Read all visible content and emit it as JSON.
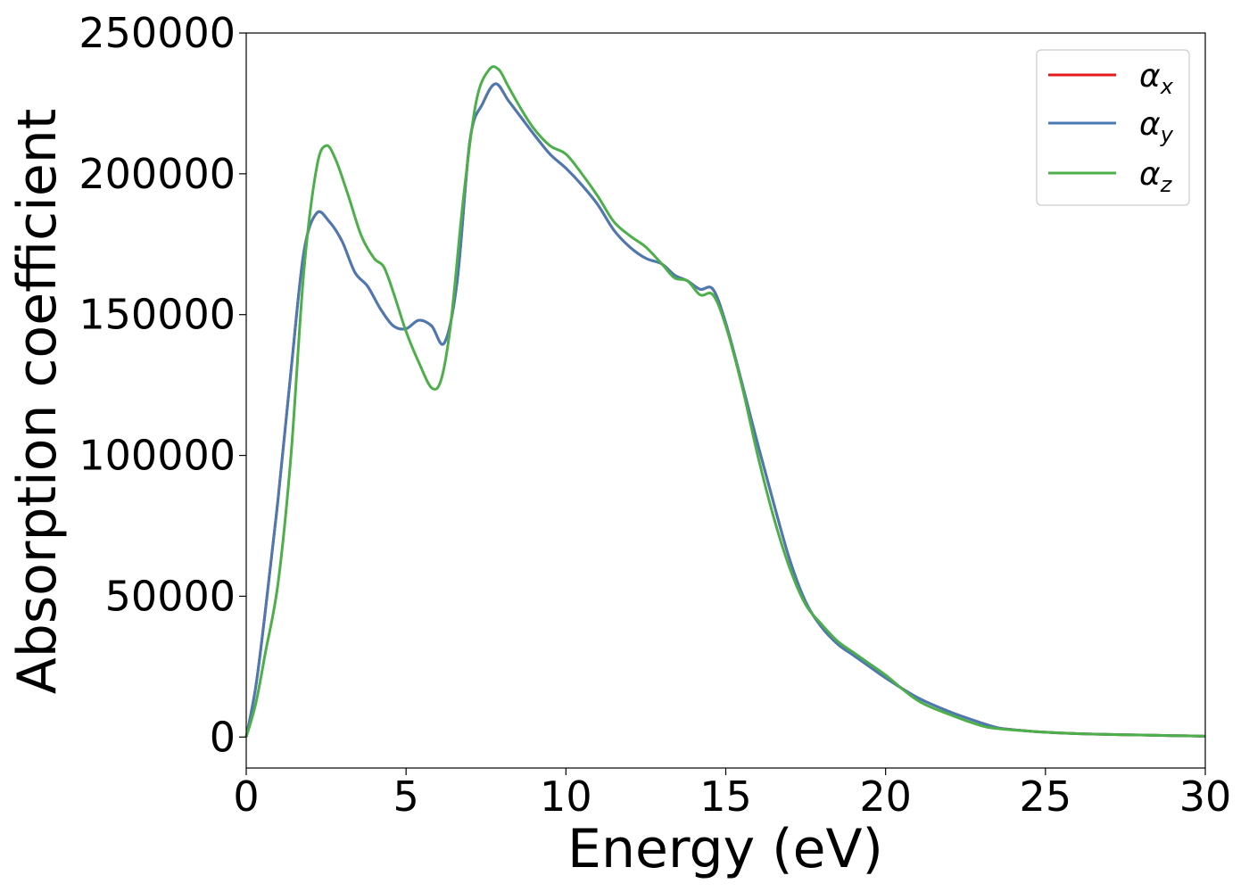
{
  "chart_data": {
    "type": "line",
    "xlabel": "Energy (eV)",
    "ylabel": "Absorption coefficient",
    "xlim": [
      0,
      30
    ],
    "ylim": [
      -11000,
      250000
    ],
    "xticks": [
      0,
      5,
      10,
      15,
      20,
      25,
      30
    ],
    "xtick_labels": [
      "0",
      "5",
      "10",
      "15",
      "20",
      "25",
      "30"
    ],
    "yticks": [
      0,
      50000,
      100000,
      150000,
      200000,
      250000
    ],
    "ytick_labels": [
      "0",
      "50000",
      "100000",
      "150000",
      "200000",
      "250000"
    ],
    "grid": false,
    "legend_position": "top-right",
    "series": [
      {
        "name": "α_x",
        "legend_base": "α",
        "legend_sub": "x",
        "color": "#e41a1c",
        "x": [
          0,
          0.3,
          0.6,
          1.0,
          1.4,
          1.8,
          2.2,
          2.6,
          3.0,
          3.4,
          3.8,
          4.2,
          4.6,
          5.0,
          5.4,
          5.8,
          6.2,
          6.6,
          7.0,
          7.4,
          7.8,
          8.2,
          8.6,
          9.0,
          9.5,
          10.0,
          10.5,
          11.0,
          11.5,
          12.0,
          12.5,
          13.0,
          13.4,
          13.8,
          14.2,
          14.6,
          15.0,
          15.5,
          16.0,
          16.5,
          17.0,
          17.5,
          18.0,
          18.5,
          19.0,
          19.5,
          20.0,
          21.0,
          22.0,
          23.0,
          23.5,
          24.0,
          25.0,
          26.0,
          27.0,
          28.0,
          29.0,
          30.0
        ],
        "y": [
          0,
          18000,
          45000,
          85000,
          130000,
          172000,
          186000,
          183000,
          176000,
          165000,
          160000,
          152000,
          146000,
          145000,
          148000,
          146000,
          140000,
          162000,
          212000,
          225000,
          232000,
          226000,
          220000,
          214000,
          207000,
          202000,
          196000,
          189000,
          180000,
          174000,
          170000,
          168000,
          164000,
          162000,
          159000,
          159000,
          147000,
          126000,
          104000,
          83000,
          63000,
          48000,
          39000,
          33000,
          29000,
          25000,
          21000,
          14000,
          9000,
          5000,
          3300,
          2600,
          1700,
          1200,
          900,
          700,
          500,
          300
        ]
      },
      {
        "name": "α_y",
        "legend_base": "α",
        "legend_sub": "y",
        "color": "#4a7ab4",
        "x": [
          0,
          0.3,
          0.6,
          1.0,
          1.4,
          1.8,
          2.2,
          2.6,
          3.0,
          3.4,
          3.8,
          4.2,
          4.6,
          5.0,
          5.4,
          5.8,
          6.2,
          6.6,
          7.0,
          7.4,
          7.8,
          8.2,
          8.6,
          9.0,
          9.5,
          10.0,
          10.5,
          11.0,
          11.5,
          12.0,
          12.5,
          13.0,
          13.4,
          13.8,
          14.2,
          14.6,
          15.0,
          15.5,
          16.0,
          16.5,
          17.0,
          17.5,
          18.0,
          18.5,
          19.0,
          19.5,
          20.0,
          21.0,
          22.0,
          23.0,
          23.5,
          24.0,
          25.0,
          26.0,
          27.0,
          28.0,
          29.0,
          30.0
        ],
        "y": [
          0,
          18000,
          45000,
          85000,
          130000,
          172000,
          186000,
          183000,
          176000,
          165000,
          160000,
          152000,
          146000,
          145000,
          148000,
          146000,
          140000,
          162000,
          212000,
          225000,
          232000,
          226000,
          220000,
          214000,
          207000,
          202000,
          196000,
          189000,
          180000,
          174000,
          170000,
          168000,
          164000,
          162000,
          159000,
          159000,
          147000,
          126000,
          104000,
          83000,
          63000,
          48000,
          39000,
          33000,
          29000,
          25000,
          21000,
          14000,
          9000,
          5000,
          3300,
          2600,
          1700,
          1200,
          900,
          700,
          500,
          300
        ]
      },
      {
        "name": "α_z",
        "legend_base": "α",
        "legend_sub": "z",
        "color": "#4daf4a",
        "x": [
          0,
          0.3,
          0.6,
          1.0,
          1.4,
          1.8,
          2.2,
          2.5,
          2.8,
          3.2,
          3.6,
          4.0,
          4.3,
          4.6,
          5.0,
          5.4,
          5.8,
          6.1,
          6.4,
          6.8,
          7.2,
          7.6,
          7.9,
          8.2,
          8.6,
          9.0,
          9.5,
          10.0,
          10.5,
          11.0,
          11.5,
          12.0,
          12.5,
          13.0,
          13.4,
          13.8,
          14.2,
          14.6,
          15.0,
          15.5,
          16.0,
          16.5,
          17.0,
          17.5,
          18.0,
          18.5,
          19.0,
          19.5,
          20.0,
          21.0,
          22.0,
          23.0,
          23.5,
          24.0,
          25.0,
          26.0,
          27.0,
          28.0,
          29.0,
          30.0
        ],
        "y": [
          0,
          12000,
          30000,
          55000,
          100000,
          165000,
          202000,
          210000,
          205000,
          192000,
          178000,
          170000,
          167000,
          158000,
          144000,
          133000,
          124000,
          127000,
          147000,
          192000,
          226000,
          237000,
          237000,
          231000,
          223000,
          216000,
          210000,
          207000,
          200000,
          192000,
          183000,
          178000,
          174000,
          168000,
          163000,
          162000,
          157000,
          157000,
          146000,
          125000,
          100000,
          78000,
          60000,
          47000,
          40000,
          34000,
          30000,
          26000,
          22000,
          13000,
          8000,
          4000,
          3000,
          2500,
          1700,
          1200,
          900,
          700,
          500,
          300
        ]
      }
    ]
  }
}
